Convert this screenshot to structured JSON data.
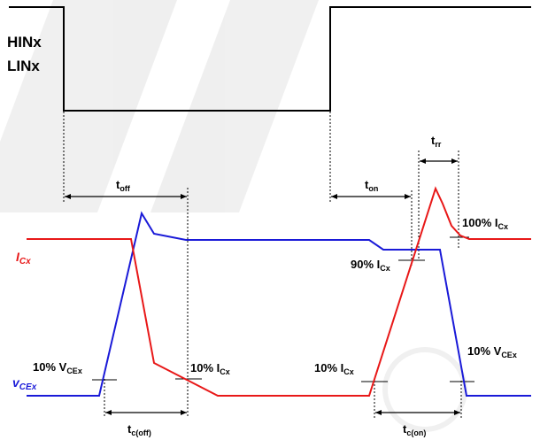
{
  "input_signal": {
    "label_line1": "HINx",
    "label_line2": "LINx"
  },
  "signals": {
    "ic": {
      "label_main": "I",
      "label_sub": "Cx",
      "color": "#e81818"
    },
    "vce": {
      "label_main": "v",
      "label_sub": "CEx",
      "color": "#1a1ad8"
    }
  },
  "intervals": {
    "toff": {
      "main": "t",
      "sub": "off"
    },
    "ton": {
      "main": "t",
      "sub": "on"
    },
    "trr": {
      "main": "t",
      "sub": "rr"
    },
    "tcoff": {
      "main": "t",
      "sub": "c(off)"
    },
    "tcon": {
      "main": "t",
      "sub": "c(on)"
    }
  },
  "annotations": {
    "vce_10_left": {
      "main": "10% V",
      "sub": "CEx"
    },
    "ic_10_left": {
      "main": "10% I",
      "sub": "Cx"
    },
    "ic_10_right": {
      "main": "10% I",
      "sub": "Cx"
    },
    "ic_90": {
      "main": "90% I",
      "sub": "Cx"
    },
    "ic_100": {
      "main": "100% I",
      "sub": "Cx"
    },
    "vce_10_right": {
      "main": "10% V",
      "sub": "CEx"
    }
  }
}
